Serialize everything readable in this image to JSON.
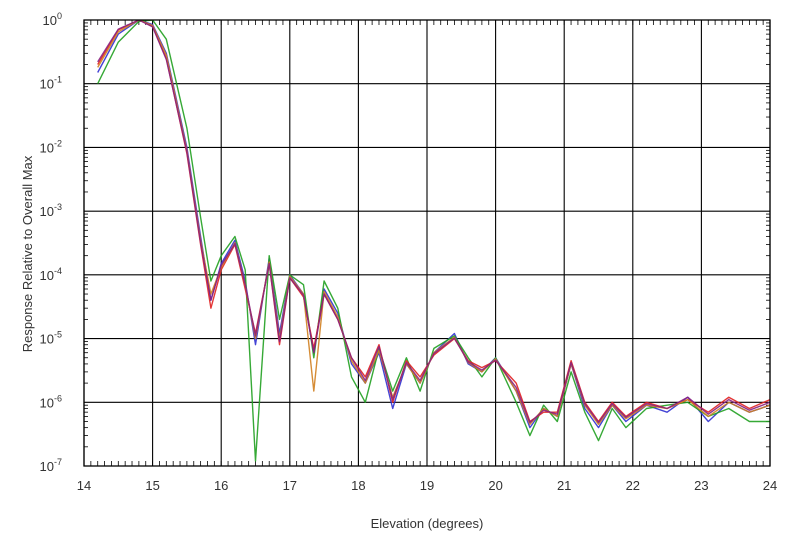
{
  "chart_data": {
    "type": "line",
    "title": "",
    "xlabel": "Elevation (degrees)",
    "ylabel": "Response Relative to Overall Max",
    "xlim": [
      14,
      24
    ],
    "ylim": [
      1e-07,
      1
    ],
    "yscale": "log",
    "grid": true,
    "legend": "none",
    "x_ticks": [
      "14",
      "15",
      "16",
      "17",
      "18",
      "19",
      "20",
      "21",
      "22",
      "23",
      "24"
    ],
    "y_ticks": [
      {
        "base": "10",
        "exp": "0",
        "value": 1
      },
      {
        "base": "10",
        "exp": "-1",
        "value": 0.1
      },
      {
        "base": "10",
        "exp": "-2",
        "value": 0.01
      },
      {
        "base": "10",
        "exp": "-3",
        "value": 0.001
      },
      {
        "base": "10",
        "exp": "-4",
        "value": 0.0001
      },
      {
        "base": "10",
        "exp": "-5",
        "value": 1e-05
      },
      {
        "base": "10",
        "exp": "-6",
        "value": 1e-06
      },
      {
        "base": "10",
        "exp": "-7",
        "value": 1e-07
      }
    ],
    "series": [
      {
        "color": "#3030d0",
        "x": [
          14.2,
          14.5,
          14.8,
          15.0,
          15.2,
          15.5,
          15.7,
          15.85,
          16.0,
          16.2,
          16.35,
          16.5,
          16.7,
          16.85,
          17.0,
          17.2,
          17.35,
          17.5,
          17.7,
          17.9,
          18.1,
          18.3,
          18.5,
          18.7,
          18.9,
          19.1,
          19.4,
          19.6,
          19.8,
          20.0,
          20.3,
          20.5,
          20.7,
          20.9,
          21.1,
          21.3,
          21.5,
          21.7,
          21.9,
          22.2,
          22.5,
          22.8,
          23.1,
          23.4,
          23.7,
          24.0
        ],
        "y": [
          0.15,
          0.6,
          1.0,
          0.85,
          0.3,
          0.01,
          0.0004,
          4e-05,
          0.00015,
          0.00035,
          8e-05,
          8e-06,
          0.00018,
          1.2e-05,
          0.0001,
          5e-05,
          6e-06,
          6e-05,
          2.5e-05,
          4e-06,
          2e-06,
          6e-06,
          8e-07,
          4e-06,
          2e-06,
          6e-06,
          1.2e-05,
          4e-06,
          3e-06,
          5e-06,
          1.5e-06,
          4e-07,
          8e-07,
          6e-07,
          4e-06,
          8e-07,
          4e-07,
          9e-07,
          5e-07,
          9e-07,
          7e-07,
          1.2e-06,
          5e-07,
          1e-06,
          7e-07,
          9e-07
        ]
      },
      {
        "color": "#20a020",
        "x": [
          14.2,
          14.5,
          14.8,
          15.0,
          15.2,
          15.5,
          15.7,
          15.85,
          16.0,
          16.2,
          16.35,
          16.5,
          16.7,
          16.85,
          17.0,
          17.2,
          17.35,
          17.5,
          17.7,
          17.9,
          18.1,
          18.3,
          18.5,
          18.7,
          18.9,
          19.1,
          19.4,
          19.6,
          19.8,
          20.0,
          20.3,
          20.5,
          20.7,
          20.9,
          21.1,
          21.3,
          21.5,
          21.7,
          21.9,
          22.2,
          22.5,
          22.8,
          23.1,
          23.4,
          23.7,
          24.0
        ],
        "y": [
          0.1,
          0.45,
          0.95,
          1.0,
          0.5,
          0.02,
          0.0008,
          8e-05,
          0.0002,
          0.0004,
          0.00012,
          1.2e-07,
          0.0002,
          2e-05,
          0.0001,
          7e-05,
          5e-06,
          8e-05,
          3e-05,
          2.5e-06,
          1e-06,
          7e-06,
          1.5e-06,
          5e-06,
          1.5e-06,
          7e-06,
          1.1e-05,
          5e-06,
          2.5e-06,
          5e-06,
          1e-06,
          3e-07,
          9e-07,
          5e-07,
          3e-06,
          7e-07,
          2.5e-07,
          8e-07,
          4e-07,
          8e-07,
          9e-07,
          1e-06,
          6e-07,
          8e-07,
          5e-07,
          5e-07
        ]
      },
      {
        "color": "#e02020",
        "x": [
          14.2,
          14.5,
          14.8,
          15.0,
          15.2,
          15.5,
          15.7,
          15.85,
          16.0,
          16.2,
          16.35,
          16.5,
          16.7,
          16.85,
          17.0,
          17.2,
          17.35,
          17.5,
          17.7,
          17.9,
          18.1,
          18.3,
          18.5,
          18.7,
          18.9,
          19.1,
          19.4,
          19.6,
          19.8,
          20.0,
          20.3,
          20.5,
          20.7,
          20.9,
          21.1,
          21.3,
          21.5,
          21.7,
          21.9,
          22.2,
          22.5,
          22.8,
          23.1,
          23.4,
          23.7,
          24.0
        ],
        "y": [
          0.2,
          0.7,
          1.0,
          0.8,
          0.25,
          0.008,
          0.0003,
          3e-05,
          0.00012,
          0.0003,
          6e-05,
          1.2e-05,
          0.00015,
          8e-06,
          9e-05,
          4.5e-05,
          7e-06,
          5e-05,
          2e-05,
          5e-06,
          2.5e-06,
          8e-06,
          1e-06,
          4.5e-06,
          2.5e-06,
          5.5e-06,
          1e-05,
          4.5e-06,
          3.5e-06,
          4.5e-06,
          2e-06,
          5e-07,
          7e-07,
          7e-07,
          4.5e-06,
          1e-06,
          5e-07,
          1e-06,
          6e-07,
          1e-06,
          8e-07,
          1.1e-06,
          7e-07,
          1.2e-06,
          8e-07,
          1.1e-06
        ]
      },
      {
        "color": "#d08020",
        "x": [
          14.2,
          14.5,
          14.8,
          15.0,
          15.2,
          15.5,
          15.7,
          15.85,
          16.0,
          16.2,
          16.35,
          16.5,
          16.7,
          16.85,
          17.0,
          17.2,
          17.35,
          17.5,
          17.7,
          17.9,
          18.1,
          18.3,
          18.5,
          18.7,
          18.9,
          19.1,
          19.4,
          19.6,
          19.8,
          20.0,
          20.3,
          20.5,
          20.7,
          20.9,
          21.1,
          21.3,
          21.5,
          21.7,
          21.9,
          22.2,
          22.5,
          22.8,
          23.1,
          23.4,
          23.7,
          24.0
        ],
        "y": [
          0.18,
          0.65,
          1.0,
          0.82,
          0.28,
          0.009,
          0.00035,
          5e-05,
          0.00013,
          0.00032,
          7e-05,
          1e-05,
          0.00016,
          1e-05,
          9.5e-05,
          5e-05,
          1.5e-06,
          5.5e-05,
          2.2e-05,
          4.5e-06,
          2e-06,
          6.5e-06,
          1.2e-06,
          4e-06,
          2e-06,
          6e-06,
          1.05e-05,
          4.2e-06,
          3e-06,
          4.8e-06,
          1.5e-06,
          4.5e-07,
          8e-07,
          6e-07,
          4e-06,
          9e-07,
          4.5e-07,
          9e-07,
          5.5e-07,
          9e-07,
          8e-07,
          1.1e-06,
          6e-07,
          1e-06,
          7e-07,
          9e-07
        ]
      },
      {
        "color": "#8a2080",
        "x": [
          14.2,
          14.5,
          14.8,
          15.0,
          15.2,
          15.5,
          15.7,
          15.85,
          16.0,
          16.2,
          16.35,
          16.5,
          16.7,
          16.85,
          17.0,
          17.2,
          17.35,
          17.5,
          17.7,
          17.9,
          18.1,
          18.3,
          18.5,
          18.7,
          18.9,
          19.1,
          19.4,
          19.6,
          19.8,
          20.0,
          20.3,
          20.5,
          20.7,
          20.9,
          21.1,
          21.3,
          21.5,
          21.7,
          21.9,
          22.2,
          22.5,
          22.8,
          23.1,
          23.4,
          23.7,
          24.0
        ],
        "y": [
          0.22,
          0.72,
          1.0,
          0.78,
          0.24,
          0.0085,
          0.00032,
          4e-05,
          0.00014,
          0.00031,
          7e-05,
          1.1e-05,
          0.00015,
          9e-06,
          9e-05,
          4.8e-05,
          6e-06,
          5e-05,
          2e-05,
          5e-06,
          2.2e-06,
          7.5e-06,
          1.1e-06,
          4.2e-06,
          2.2e-06,
          5.8e-06,
          1.02e-05,
          4.3e-06,
          3.2e-06,
          4.6e-06,
          1.7e-06,
          4.8e-07,
          7.5e-07,
          6.5e-07,
          4.2e-06,
          9.5e-07,
          4.8e-07,
          9.5e-07,
          5.8e-07,
          9.5e-07,
          8e-07,
          1.2e-06,
          6.5e-07,
          1.1e-06,
          7.5e-07,
          1e-06
        ]
      }
    ]
  }
}
